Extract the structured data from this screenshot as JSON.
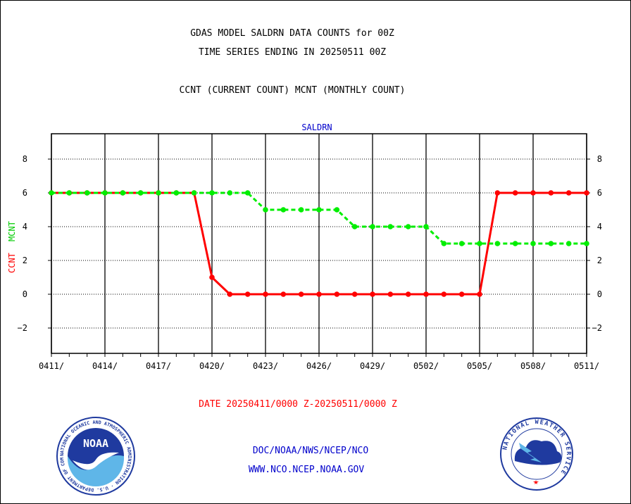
{
  "header": {
    "line1": "GDAS MODEL SALDRN DATA COUNTS for 00Z",
    "line2": "TIME SERIES ENDING IN 20250511 00Z",
    "line3": "CCNT (CURRENT COUNT) MCNT (MONTHLY COUNT)"
  },
  "footer": {
    "date_range": "DATE 20250411/0000 Z-20250511/0000 Z",
    "org": "DOC/NOAA/NWS/NCEP/NCO",
    "url": "WWW.NCO.NCEP.NOAA.GOV"
  },
  "logos": {
    "noaa": "NOAA",
    "noaa_ring": "NATIONAL OCEANIC AND ATMOSPHERIC ADMINISTRATION · U.S. DEPARTMENT OF COMMERCE ·",
    "nws_ring": "NATIONAL WEATHER SERVICE"
  },
  "colors": {
    "ccnt": "#ff0000",
    "mcnt": "#00ee00",
    "text": "#000000",
    "footer_blue": "#0000cc",
    "date_red": "#ff0000"
  },
  "chart_data": {
    "type": "line",
    "title": "SALDRN",
    "ylabel_series": [
      "CCNT",
      "MCNT"
    ],
    "ylim": [
      -3.5,
      9.5
    ],
    "yticks": [
      -2,
      0,
      2,
      4,
      6,
      8
    ],
    "xlim": [
      0,
      30
    ],
    "x_tick_labels": [
      "0411/",
      "0414/",
      "0417/",
      "0420/",
      "0423/",
      "0426/",
      "0429/",
      "0502/",
      "0505/",
      "0508/",
      "0511/"
    ],
    "x_tick_days": [
      0,
      3,
      6,
      9,
      12,
      15,
      18,
      21,
      24,
      27,
      30
    ],
    "grid": true,
    "x": [
      "0411",
      "0412",
      "0413",
      "0414",
      "0415",
      "0416",
      "0417",
      "0418",
      "0419",
      "0420",
      "0421",
      "0422",
      "0423",
      "0424",
      "0425",
      "0426",
      "0427",
      "0428",
      "0429",
      "0430",
      "0501",
      "0502",
      "0503",
      "0504",
      "0505",
      "0506",
      "0507",
      "0508",
      "0509",
      "0510",
      "0511"
    ],
    "series": [
      {
        "name": "CCNT",
        "color": "#ff0000",
        "style": "solid",
        "values": [
          6,
          6,
          6,
          6,
          6,
          6,
          6,
          6,
          6,
          1,
          0,
          0,
          0,
          0,
          0,
          0,
          0,
          0,
          0,
          0,
          0,
          0,
          0,
          0,
          0,
          6,
          6,
          6,
          6,
          6,
          6
        ]
      },
      {
        "name": "MCNT",
        "color": "#00ee00",
        "style": "dashed",
        "values": [
          6,
          6,
          6,
          6,
          6,
          6,
          6,
          6,
          6,
          6,
          6,
          6,
          5,
          5,
          5,
          5,
          5,
          4,
          4,
          4,
          4,
          4,
          3,
          3,
          3,
          3,
          3,
          3,
          3,
          3,
          3
        ]
      }
    ]
  }
}
